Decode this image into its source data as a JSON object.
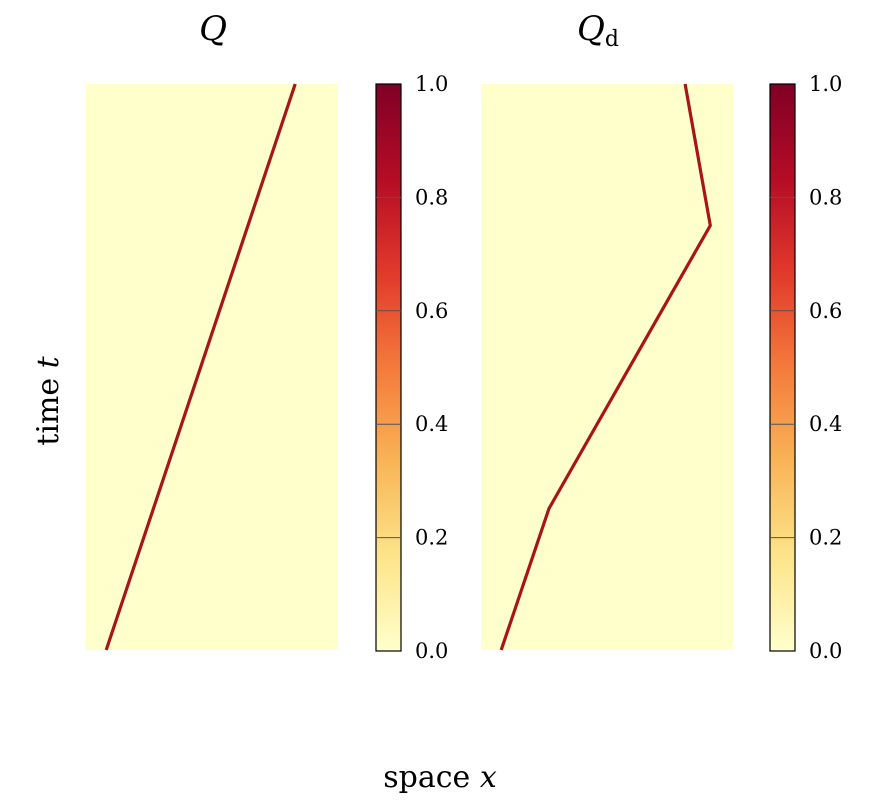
{
  "figure": {
    "xlabel_text": "space ",
    "xlabel_var": "x",
    "ylabel_text": "time ",
    "ylabel_var": "t"
  },
  "colors": {
    "background": "#ffffcc",
    "line": "#a81418",
    "colormap": [
      "#ffffcc",
      "#fde48a",
      "#f9b457",
      "#f47a3c",
      "#e1392b",
      "#b50c25",
      "#800026"
    ]
  },
  "chart_data": [
    {
      "type": "heatmap",
      "title": "Q",
      "title_subscript": "",
      "xlabel": "space x",
      "ylabel": "time t",
      "colorbar": {
        "min": 0.0,
        "max": 1.0,
        "ticks": [
          "0.0",
          "0.2",
          "0.4",
          "0.6",
          "0.8",
          "1.0"
        ]
      },
      "field_value_background": 0.0,
      "field_value_front": 1.0,
      "front_path": {
        "description": "single moving front",
        "points_x_fraction_t_fraction": [
          [
            0.08,
            0.0
          ],
          [
            0.83,
            1.0
          ]
        ]
      }
    },
    {
      "type": "heatmap",
      "title": "Q",
      "title_subscript": "d",
      "xlabel": "space x",
      "ylabel": "time t",
      "colorbar": {
        "min": 0.0,
        "max": 1.0,
        "ticks": [
          "0.0",
          "0.2",
          "0.4",
          "0.6",
          "0.8",
          "1.0"
        ]
      },
      "field_value_background": 0.0,
      "field_value_front": 1.0,
      "front_path": {
        "description": "piecewise-linear moving front",
        "points_x_fraction_t_fraction": [
          [
            0.08,
            0.0
          ],
          [
            0.27,
            0.25
          ],
          [
            0.91,
            0.75
          ],
          [
            0.81,
            1.0
          ]
        ]
      }
    }
  ]
}
